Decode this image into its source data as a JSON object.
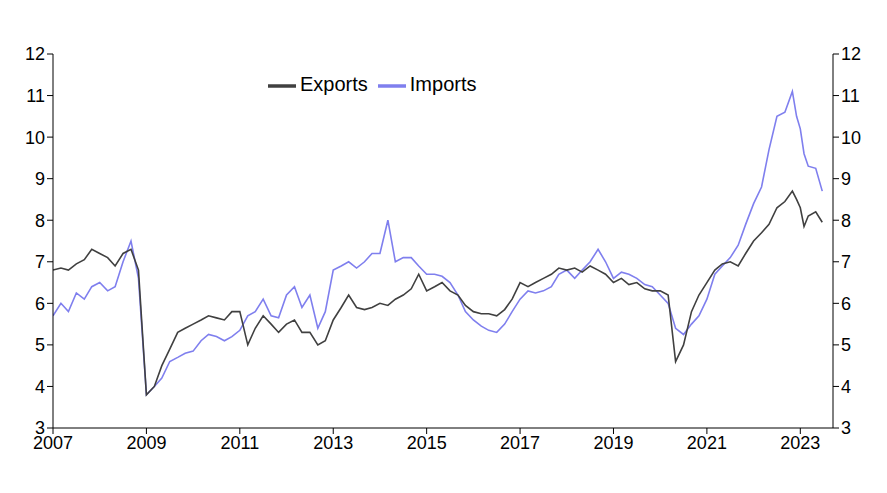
{
  "chart_data": {
    "type": "line",
    "legend": "top",
    "grid": false,
    "xlim": [
      2007,
      2023.7
    ],
    "xticks": [
      2007,
      2009,
      2011,
      2013,
      2015,
      2017,
      2019,
      2021,
      2023
    ],
    "ylim": [
      3,
      12
    ],
    "yticks": [
      3,
      4,
      5,
      6,
      7,
      8,
      9,
      10,
      11,
      12
    ],
    "y2lim": [
      3,
      12
    ],
    "y2ticks": [
      3,
      4,
      5,
      6,
      7,
      8,
      9,
      10,
      11,
      12
    ],
    "x": [
      2007,
      2007.17,
      2007.33,
      2007.5,
      2007.67,
      2007.83,
      2008,
      2008.17,
      2008.33,
      2008.5,
      2008.67,
      2008.83,
      2009,
      2009.17,
      2009.33,
      2009.5,
      2009.67,
      2009.83,
      2010,
      2010.17,
      2010.33,
      2010.5,
      2010.67,
      2010.83,
      2011,
      2011.17,
      2011.33,
      2011.5,
      2011.67,
      2011.83,
      2012,
      2012.17,
      2012.33,
      2012.5,
      2012.67,
      2012.83,
      2013,
      2013.17,
      2013.33,
      2013.5,
      2013.67,
      2013.83,
      2014,
      2014.17,
      2014.33,
      2014.5,
      2014.67,
      2014.83,
      2015,
      2015.17,
      2015.33,
      2015.5,
      2015.67,
      2015.83,
      2016,
      2016.17,
      2016.33,
      2016.5,
      2016.67,
      2016.83,
      2017,
      2017.17,
      2017.33,
      2017.5,
      2017.67,
      2017.83,
      2018,
      2018.17,
      2018.33,
      2018.5,
      2018.67,
      2018.83,
      2019,
      2019.17,
      2019.33,
      2019.5,
      2019.67,
      2019.83,
      2020,
      2020.17,
      2020.33,
      2020.5,
      2020.67,
      2020.83,
      2021,
      2021.17,
      2021.33,
      2021.5,
      2021.67,
      2021.83,
      2022,
      2022.17,
      2022.33,
      2022.5,
      2022.67,
      2022.83,
      2022.92,
      2023,
      2023.08,
      2023.17,
      2023.33,
      2023.47
    ],
    "series": [
      {
        "name": "Imports",
        "color": "#7f7fee",
        "values": [
          5.7,
          6.0,
          5.8,
          6.25,
          6.1,
          6.4,
          6.5,
          6.3,
          6.4,
          7.0,
          7.5,
          6.6,
          3.8,
          4.0,
          4.2,
          4.6,
          4.7,
          4.8,
          4.85,
          5.1,
          5.25,
          5.2,
          5.1,
          5.2,
          5.35,
          5.7,
          5.8,
          6.1,
          5.7,
          5.65,
          6.2,
          6.4,
          5.9,
          6.2,
          5.4,
          5.8,
          6.8,
          6.9,
          7.0,
          6.85,
          7.0,
          7.2,
          7.2,
          8.0,
          7.0,
          7.1,
          7.1,
          6.9,
          6.7,
          6.7,
          6.65,
          6.5,
          6.2,
          5.8,
          5.6,
          5.45,
          5.35,
          5.3,
          5.5,
          5.8,
          6.1,
          6.3,
          6.25,
          6.3,
          6.4,
          6.7,
          6.8,
          6.6,
          6.8,
          7.0,
          7.3,
          7.0,
          6.6,
          6.75,
          6.7,
          6.6,
          6.45,
          6.4,
          6.2,
          6.0,
          5.4,
          5.25,
          5.5,
          5.7,
          6.1,
          6.7,
          6.9,
          7.1,
          7.4,
          7.9,
          8.4,
          8.8,
          9.7,
          10.5,
          10.6,
          11.1,
          10.5,
          10.2,
          9.6,
          9.3,
          9.25,
          8.7
        ]
      },
      {
        "name": "Exports",
        "color": "#404040",
        "values": [
          6.8,
          6.85,
          6.8,
          6.95,
          7.05,
          7.3,
          7.2,
          7.1,
          6.9,
          7.2,
          7.3,
          6.8,
          3.8,
          4.0,
          4.5,
          4.9,
          5.3,
          5.4,
          5.5,
          5.6,
          5.7,
          5.65,
          5.6,
          5.8,
          5.8,
          5.0,
          5.4,
          5.7,
          5.5,
          5.3,
          5.5,
          5.6,
          5.3,
          5.3,
          5.0,
          5.1,
          5.6,
          5.9,
          6.2,
          5.9,
          5.85,
          5.9,
          6.0,
          5.95,
          6.1,
          6.2,
          6.35,
          6.7,
          6.3,
          6.4,
          6.5,
          6.3,
          6.2,
          5.95,
          5.8,
          5.75,
          5.75,
          5.7,
          5.85,
          6.1,
          6.5,
          6.4,
          6.5,
          6.6,
          6.7,
          6.85,
          6.8,
          6.85,
          6.75,
          6.9,
          6.8,
          6.7,
          6.5,
          6.6,
          6.45,
          6.5,
          6.35,
          6.3,
          6.3,
          6.2,
          4.6,
          5.0,
          5.8,
          6.2,
          6.5,
          6.8,
          6.95,
          7.0,
          6.9,
          7.2,
          7.5,
          7.7,
          7.9,
          8.3,
          8.45,
          8.7,
          8.5,
          8.3,
          7.85,
          8.1,
          8.2,
          7.95
        ]
      }
    ]
  }
}
